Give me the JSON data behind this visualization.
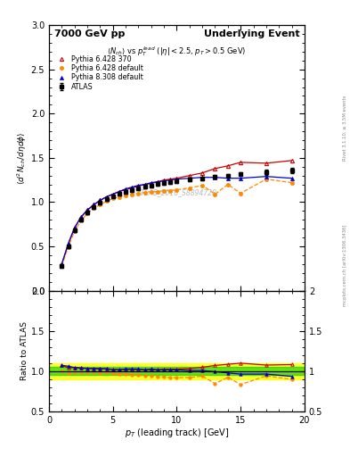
{
  "title_left": "7000 GeV pp",
  "title_right": "Underlying Event",
  "watermark": "ATLAS_2010_S8894728",
  "right_label": "mcplots.cern.ch [arXiv:1306.3436]",
  "right_label2": "Rivet 3.1.10, ≥ 3.5M events",
  "main_ylabel": "$\\langle d^2 N_{ch}/d\\eta d\\phi \\rangle$",
  "ratio_ylabel": "Ratio to ATLAS",
  "xlabel": "$p_T$ (leading track) [GeV]",
  "subtitle": "$\\langle N_{ch}\\rangle$ vs $p_T^{lead}$ ($|\\eta| < 2.5$, $p_T > 0.5$ GeV)",
  "ylim_main": [
    0,
    3.0
  ],
  "ylim_ratio": [
    0.5,
    2.0
  ],
  "xlim": [
    0,
    20
  ],
  "atlas_color": "#000000",
  "p6428_370_color": "#cc0000",
  "p6428_def_color": "#ff8800",
  "p8308_def_color": "#0000cc",
  "band_green": "#00cc00",
  "band_yellow": "#ffff00",
  "atlas_data": {
    "pt": [
      1.0,
      1.5,
      2.0,
      2.5,
      3.0,
      3.5,
      4.0,
      4.5,
      5.0,
      5.5,
      6.0,
      6.5,
      7.0,
      7.5,
      8.0,
      8.5,
      9.0,
      9.5,
      10.0,
      11.0,
      12.0,
      13.0,
      14.0,
      15.0,
      17.0,
      19.0
    ],
    "val": [
      0.28,
      0.5,
      0.68,
      0.8,
      0.88,
      0.94,
      0.99,
      1.03,
      1.07,
      1.1,
      1.12,
      1.14,
      1.16,
      1.18,
      1.19,
      1.21,
      1.22,
      1.23,
      1.24,
      1.26,
      1.27,
      1.29,
      1.3,
      1.32,
      1.34,
      1.36
    ],
    "err": [
      0.02,
      0.02,
      0.02,
      0.02,
      0.02,
      0.02,
      0.02,
      0.02,
      0.02,
      0.02,
      0.02,
      0.02,
      0.02,
      0.02,
      0.02,
      0.02,
      0.02,
      0.02,
      0.02,
      0.02,
      0.02,
      0.02,
      0.02,
      0.02,
      0.03,
      0.03
    ]
  },
  "p6428_370_data": {
    "pt": [
      1.0,
      1.5,
      2.0,
      2.5,
      3.0,
      3.5,
      4.0,
      4.5,
      5.0,
      5.5,
      6.0,
      6.5,
      7.0,
      7.5,
      8.0,
      8.5,
      9.0,
      9.5,
      10.0,
      11.0,
      12.0,
      13.0,
      14.0,
      15.0,
      17.0,
      19.0
    ],
    "val": [
      0.3,
      0.52,
      0.71,
      0.83,
      0.91,
      0.97,
      1.02,
      1.06,
      1.09,
      1.12,
      1.14,
      1.16,
      1.18,
      1.2,
      1.21,
      1.23,
      1.25,
      1.26,
      1.27,
      1.3,
      1.33,
      1.38,
      1.41,
      1.45,
      1.44,
      1.47
    ]
  },
  "p6428_def_data": {
    "pt": [
      1.0,
      1.5,
      2.0,
      2.5,
      3.0,
      3.5,
      4.0,
      4.5,
      5.0,
      5.5,
      6.0,
      6.5,
      7.0,
      7.5,
      8.0,
      8.5,
      9.0,
      9.5,
      10.0,
      11.0,
      12.0,
      13.0,
      14.0,
      15.0,
      17.0,
      19.0
    ],
    "val": [
      0.28,
      0.49,
      0.67,
      0.79,
      0.87,
      0.93,
      0.97,
      1.01,
      1.04,
      1.06,
      1.08,
      1.09,
      1.1,
      1.11,
      1.12,
      1.12,
      1.13,
      1.13,
      1.14,
      1.16,
      1.19,
      1.09,
      1.2,
      1.1,
      1.26,
      1.22
    ]
  },
  "p8308_def_data": {
    "pt": [
      1.0,
      1.5,
      2.0,
      2.5,
      3.0,
      3.5,
      4.0,
      4.5,
      5.0,
      5.5,
      6.0,
      6.5,
      7.0,
      7.5,
      8.0,
      8.5,
      9.0,
      9.5,
      10.0,
      11.0,
      12.0,
      13.0,
      14.0,
      15.0,
      17.0,
      19.0
    ],
    "val": [
      0.3,
      0.53,
      0.71,
      0.83,
      0.91,
      0.97,
      1.02,
      1.06,
      1.09,
      1.12,
      1.15,
      1.17,
      1.19,
      1.2,
      1.22,
      1.23,
      1.24,
      1.25,
      1.26,
      1.27,
      1.28,
      1.28,
      1.27,
      1.27,
      1.29,
      1.27
    ]
  },
  "band_green_ratio": {
    "low": 0.95,
    "high": 1.05
  },
  "band_yellow_ratio": {
    "low": 0.9,
    "high": 1.1
  }
}
